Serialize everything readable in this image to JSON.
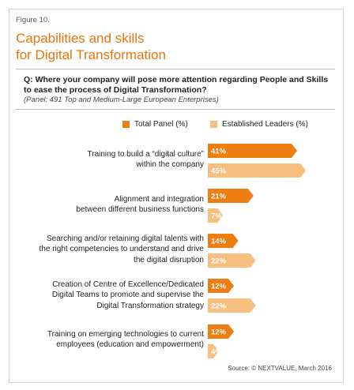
{
  "figure_label": "Figure 10.",
  "title_lines": [
    "Capabilities and skills",
    "for Digital Transformation"
  ],
  "question_lines": [
    "Q: Where your company will pose more attention regarding People and Skills",
    "to ease the process of Digital Transformation?"
  ],
  "panel_note": "(Panel: 491 Top and Medium-Large European Enterprises)",
  "source": "Source: © NEXTVALUE, March 2016",
  "colors": {
    "title": "#e6740c",
    "total_panel": "#ee7d12",
    "established_leaders": "#f6bf7f"
  },
  "chart_data": {
    "type": "bar",
    "orientation": "horizontal",
    "categories": [
      [
        "Training to build a “digital culture”",
        "within the company"
      ],
      [
        "Alignment and integration",
        "between different business functions"
      ],
      [
        "Searching and/or retaining digital talents with",
        "the right competencies to understand and drive",
        "the digital disruption"
      ],
      [
        "Creation of Centre of Excellence/Dedicated",
        "Digital Teams to promote and supervise the",
        "Digital Transformation strategy"
      ],
      [
        "Training on emerging technologies to current",
        "employees (education and empowerment)"
      ]
    ],
    "series": [
      {
        "name": "Total Panel (%)",
        "values": [
          41,
          21,
          14,
          12,
          12
        ],
        "labels": [
          "41%",
          "21%",
          "14%",
          "12%",
          "12%"
        ]
      },
      {
        "name": "Established Leaders (%)",
        "values": [
          45,
          7,
          22,
          22,
          4
        ],
        "labels": [
          "45%",
          "7%",
          "22%",
          "22%",
          "4%"
        ]
      }
    ],
    "xlim": [
      0,
      45
    ],
    "grid": false,
    "legend_position": "top"
  }
}
